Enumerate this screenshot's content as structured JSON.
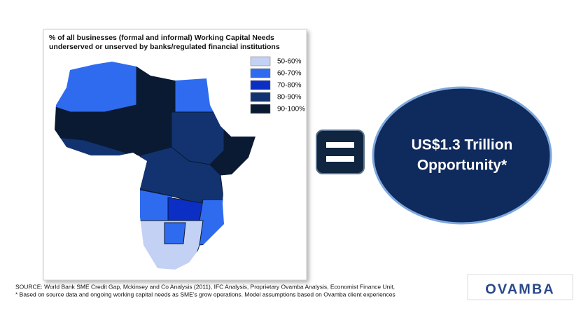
{
  "panel": {
    "title_lines": [
      "% of all businesses (formal and informal) Working Capital Needs",
      "underserved or unserved by banks/regulated financial institutions"
    ],
    "legend": [
      {
        "label": "50-60%",
        "color": "#c3d1f4"
      },
      {
        "label": "60-70%",
        "color": "#2f6bef"
      },
      {
        "label": "70-80%",
        "color": "#0b2fc4"
      },
      {
        "label": "80-90%",
        "color": "#123370"
      },
      {
        "label": "90-100%",
        "color": "#0a1a33"
      }
    ]
  },
  "callout": {
    "lines": [
      "US$1.3 Trillion",
      "Opportunity*"
    ]
  },
  "footnotes": [
    "SOURCE:  World Bank SME Credit Gap, Mckinsey and Co Analysis (2011), IFC Analysis,  Proprietary Ovamba Analysis, Economist Finance Unit,",
    "*   Based on source data and ongoing working capital needs as SME’s grow operations.  Model assumptions based on Ovamba client experiences"
  ],
  "logo": "OVAMBA"
}
